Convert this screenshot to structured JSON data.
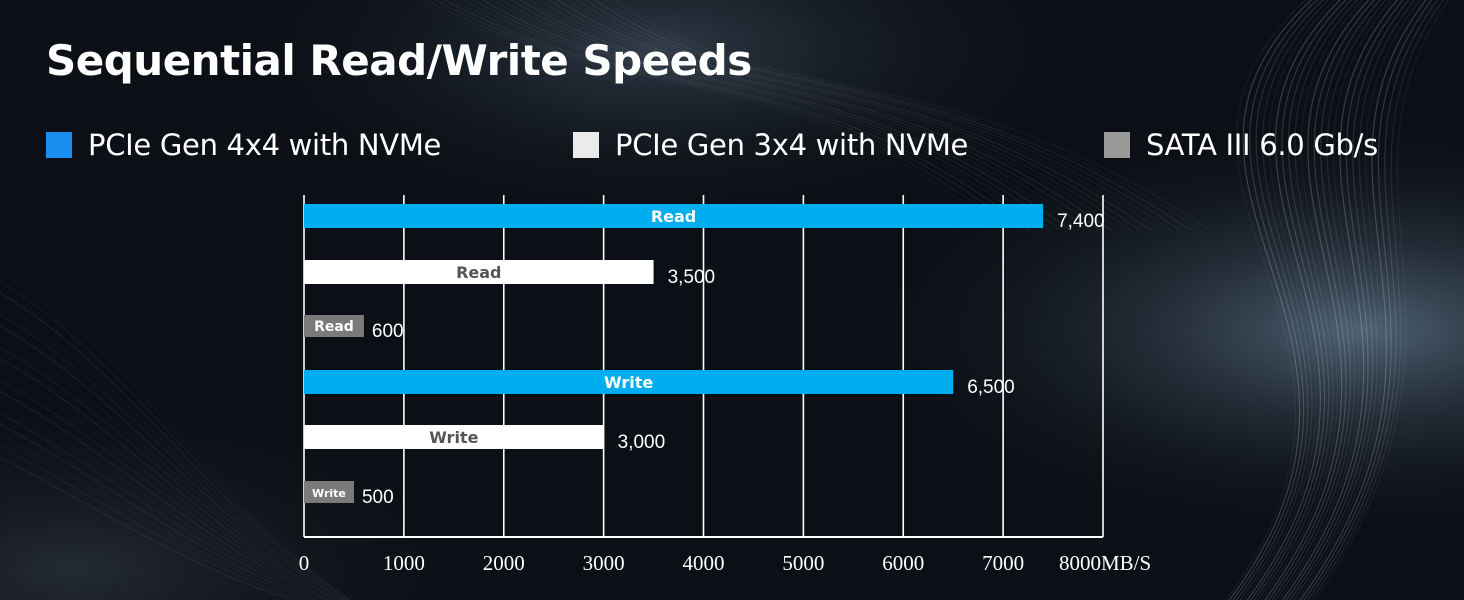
{
  "chart_data": {
    "type": "bar",
    "orientation": "horizontal",
    "title": "Sequential Read/Write Speeds",
    "legend": [
      {
        "name": "PCIe Gen 4x4 with NVMe",
        "color": "#1a8ff0"
      },
      {
        "name": "PCIe Gen 3x4 with NVMe",
        "color": "#ebebeb"
      },
      {
        "name": "SATA III 6.0 Gb/s",
        "color": "#9a9a9a"
      }
    ],
    "bars": [
      {
        "label": "Read",
        "series": "PCIe Gen 4x4 with NVMe",
        "value": 7400,
        "value_label": "7,400",
        "color": "#00aeef",
        "label_color": "#ffffff"
      },
      {
        "label": "Read",
        "series": "PCIe Gen 3x4 with NVMe",
        "value": 3500,
        "value_label": "3,500",
        "color": "#ffffff",
        "label_color": "#555555"
      },
      {
        "label": "Read",
        "series": "SATA III 6.0 Gb/s",
        "value": 600,
        "value_label": "600",
        "color": "#7a7a7a",
        "label_color": "#ffffff"
      },
      {
        "label": "Write",
        "series": "PCIe Gen 4x4 with NVMe",
        "value": 6500,
        "value_label": "6,500",
        "color": "#00aeef",
        "label_color": "#ffffff"
      },
      {
        "label": "Write",
        "series": "PCIe Gen 3x4 with NVMe",
        "value": 3000,
        "value_label": "3,000",
        "color": "#ffffff",
        "label_color": "#555555"
      },
      {
        "label": "Write",
        "series": "SATA III 6.0 Gb/s",
        "value": 500,
        "value_label": "500",
        "color": "#7a7a7a",
        "label_color": "#ffffff"
      }
    ],
    "xlim": [
      0,
      8000
    ],
    "x_ticks": [
      "0",
      "1000",
      "2000",
      "3000",
      "4000",
      "5000",
      "6000",
      "7000",
      "8000MB/S"
    ],
    "grid": true,
    "legend_position": "top"
  }
}
